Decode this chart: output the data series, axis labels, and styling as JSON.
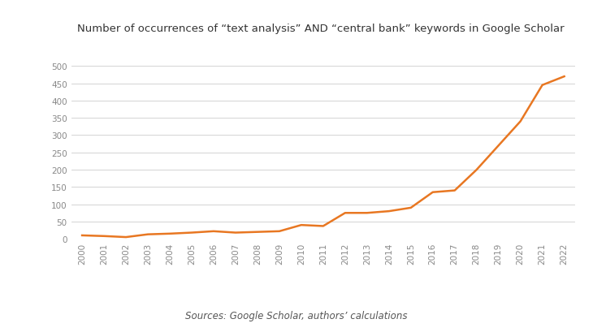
{
  "years": [
    2000,
    2001,
    2002,
    2003,
    2004,
    2005,
    2006,
    2007,
    2008,
    2009,
    2010,
    2011,
    2012,
    2013,
    2014,
    2015,
    2016,
    2017,
    2018,
    2019,
    2020,
    2021,
    2022
  ],
  "values": [
    10,
    8,
    5,
    13,
    15,
    18,
    22,
    18,
    20,
    22,
    40,
    37,
    75,
    75,
    80,
    90,
    135,
    140,
    200,
    270,
    340,
    445,
    470
  ],
  "line_color": "#E87722",
  "line_width": 1.8,
  "title": "Number of occurrences of “text analysis” AND “central bank” keywords in Google Scholar",
  "title_fontsize": 9.5,
  "source_text": "Sources: Google Scholar, authors’ calculations",
  "source_fontsize": 8.5,
  "ylim": [
    0,
    520
  ],
  "yticks": [
    0,
    50,
    100,
    150,
    200,
    250,
    300,
    350,
    400,
    450,
    500
  ],
  "background_color": "#ffffff",
  "grid_color": "#cccccc",
  "tick_fontsize": 7.5,
  "tick_color": "#888888"
}
